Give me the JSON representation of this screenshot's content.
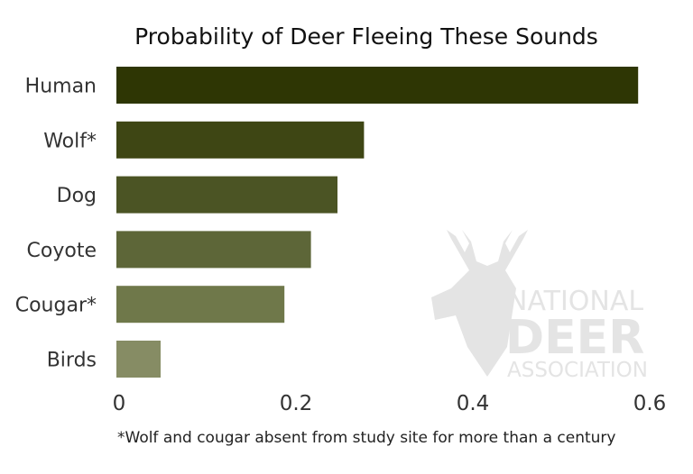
{
  "chart_data": {
    "type": "bar",
    "orientation": "horizontal",
    "title": "Probability of Deer Fleeing These Sounds",
    "categories": [
      "Human",
      "Wolf*",
      "Dog",
      "Coyote",
      "Cougar*",
      "Birds"
    ],
    "values": [
      0.59,
      0.28,
      0.25,
      0.22,
      0.19,
      0.05
    ],
    "colors": [
      "#2e3604",
      "#3e4614",
      "#4b5424",
      "#5d6638",
      "#6f784a",
      "#868c64"
    ],
    "xlim": [
      0,
      0.6
    ],
    "xticks": [
      "0",
      "0.2",
      "0.4",
      "0.6"
    ],
    "xlabel": "",
    "ylabel": "",
    "grid": false,
    "footnote": "*Wolf and cougar absent from study site for more than a century"
  },
  "watermark": {
    "line1": "NATIONAL",
    "line2": "DEER",
    "line3": "ASSOCIATION",
    "color": "#e2e2e2"
  }
}
